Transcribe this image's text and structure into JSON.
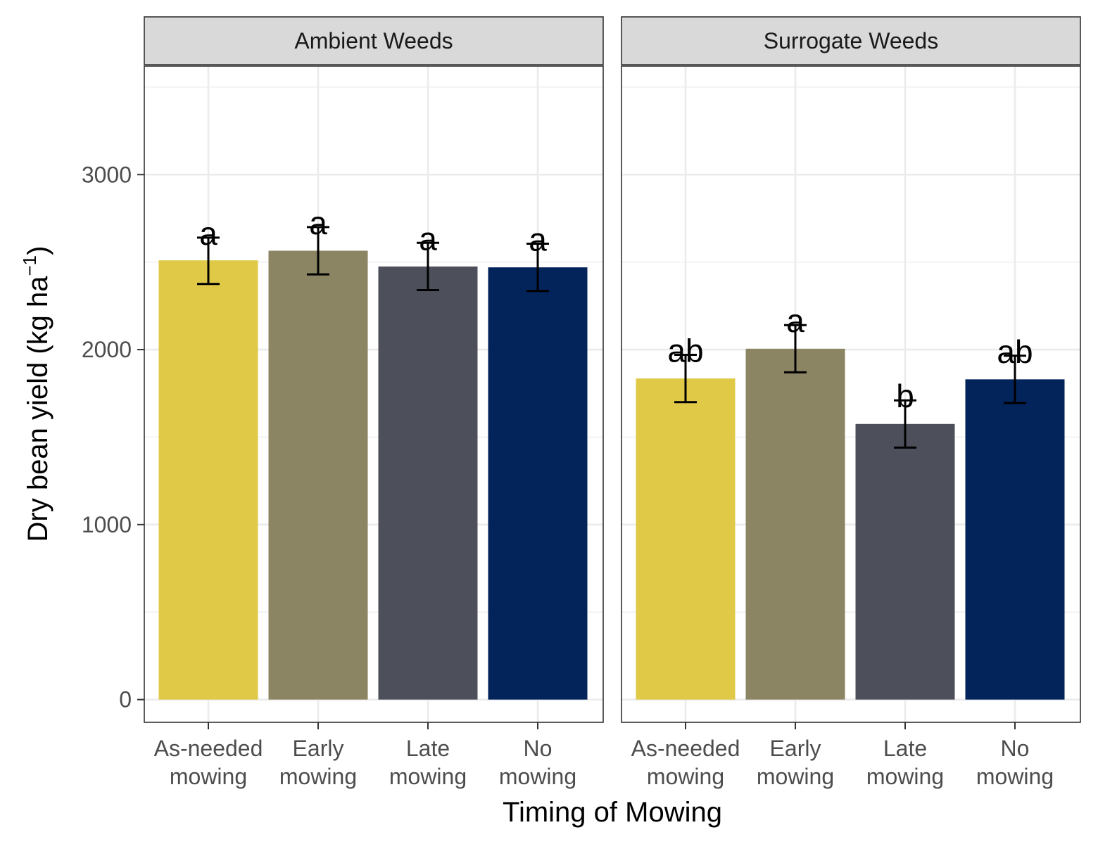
{
  "chart_data": {
    "type": "bar",
    "xlabel": "Timing of Mowing",
    "ylabel_main": "Dry bean yield (kg ha",
    "ylabel_sup": "−1",
    "ylabel_close": ")",
    "ylim": [
      -130,
      3620
    ],
    "yticks": [
      0,
      1000,
      2000,
      3000
    ],
    "grid": true,
    "legend": "none",
    "categories": [
      [
        "As-needed",
        "mowing"
      ],
      [
        "Early",
        "mowing"
      ],
      [
        "Late",
        "mowing"
      ],
      [
        "No",
        "mowing"
      ]
    ],
    "colors": [
      "#e0c946",
      "#8b8563",
      "#4d505b",
      "#03245a"
    ],
    "panels": [
      {
        "title": "Ambient Weeds",
        "values": [
          2510,
          2565,
          2475,
          2470
        ],
        "error_lower": [
          2375,
          2430,
          2340,
          2335
        ],
        "error_upper": [
          2640,
          2700,
          2610,
          2605
        ],
        "letters": [
          "a",
          "a",
          "a",
          "a"
        ]
      },
      {
        "title": "Surrogate Weeds",
        "values": [
          1835,
          2005,
          1575,
          1830
        ],
        "error_lower": [
          1700,
          1870,
          1440,
          1695
        ],
        "error_upper": [
          1970,
          2140,
          1710,
          1965
        ],
        "letters": [
          "ab",
          "a",
          "b",
          "ab"
        ]
      }
    ]
  }
}
